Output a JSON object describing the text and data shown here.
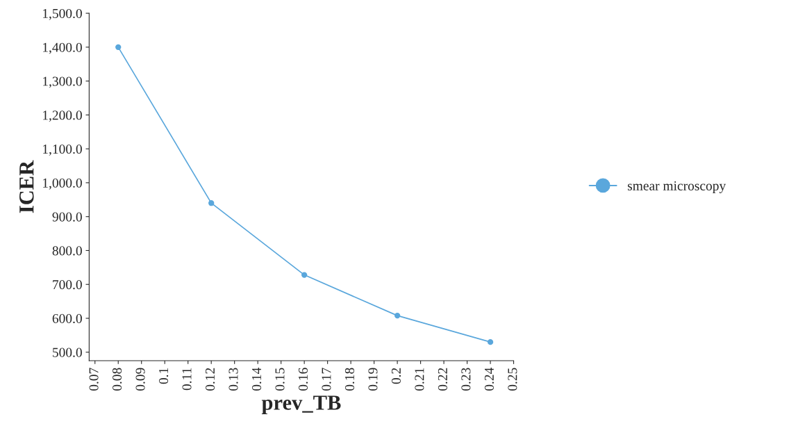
{
  "chart_data": {
    "type": "line",
    "xlabel": "prev_TB",
    "ylabel": "ICER",
    "x": [
      0.08,
      0.12,
      0.16,
      0.2,
      0.24
    ],
    "series": [
      {
        "name": "smear microscopy",
        "color": "#5aa7dc",
        "values": [
          1400,
          940,
          728,
          608,
          530
        ]
      }
    ],
    "xlim": [
      0.0675,
      0.25
    ],
    "xticks": [
      0.07,
      0.08,
      0.09,
      {
        "value": 0.1,
        "label": "0.1"
      },
      0.11,
      0.12,
      0.13,
      0.14,
      0.15,
      0.16,
      0.17,
      0.18,
      0.19,
      {
        "value": 0.2,
        "label": "0.2"
      },
      0.21,
      0.22,
      0.23,
      0.24,
      0.25
    ],
    "ylim": [
      475,
      1500
    ],
    "yticks": [
      {
        "value": 500,
        "label": "500.0"
      },
      {
        "value": 600,
        "label": "600.0"
      },
      {
        "value": 700,
        "label": "700.0"
      },
      {
        "value": 800,
        "label": "800.0"
      },
      {
        "value": 900,
        "label": "900.0"
      },
      {
        "value": 1000,
        "label": "1,000.0"
      },
      {
        "value": 1100,
        "label": "1,100.0"
      },
      {
        "value": 1200,
        "label": "1,200.0"
      },
      {
        "value": 1300,
        "label": "1,300.0"
      },
      {
        "value": 1400,
        "label": "1,400.0"
      },
      {
        "value": 1500,
        "label": "1,500.0"
      }
    ],
    "grid": false,
    "legend": "right",
    "marker": "circle",
    "line_style": "solid"
  }
}
